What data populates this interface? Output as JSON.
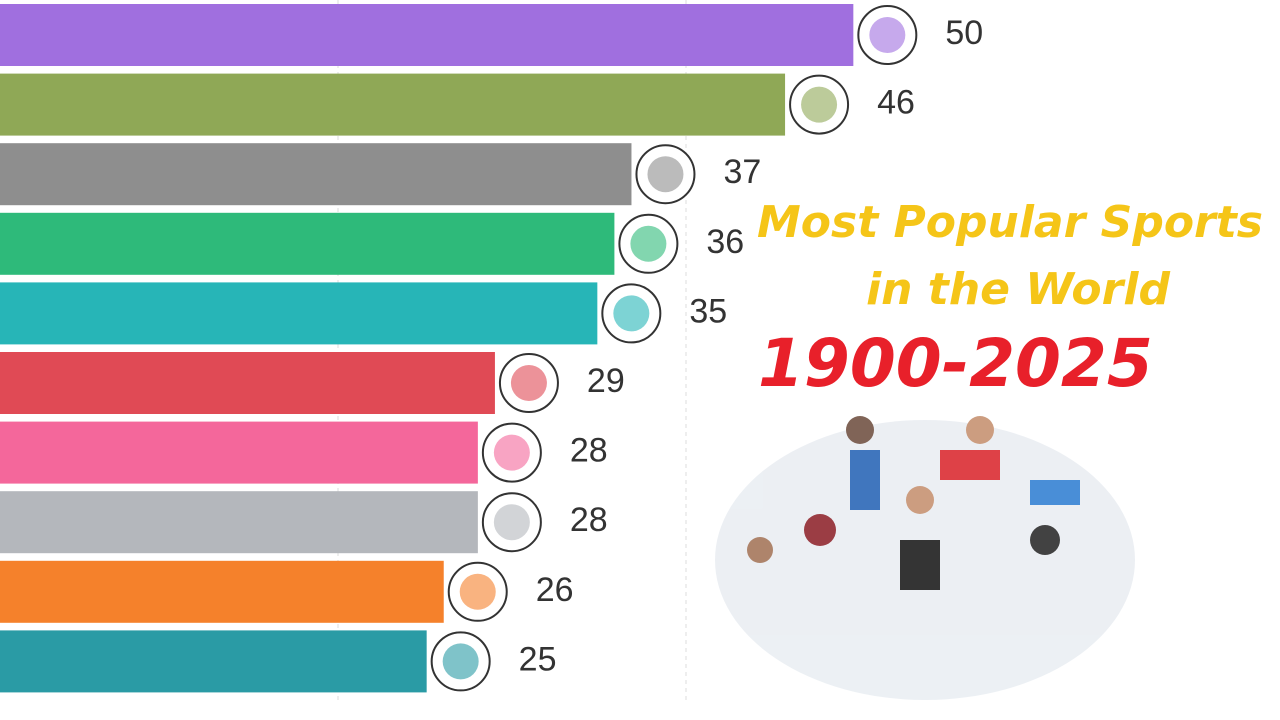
{
  "chart_data": {
    "type": "bar",
    "orientation": "horizontal",
    "title": [
      "Most Popular Sports",
      "in the World"
    ],
    "subtitle": "1900-2025",
    "categories": [
      null,
      null,
      null,
      null,
      null,
      null,
      null,
      null,
      null,
      null
    ],
    "values": [
      50,
      46,
      37,
      36,
      35,
      29,
      28,
      28,
      26,
      25
    ],
    "colors": [
      "#a06fdf",
      "#8fa856",
      "#8e8e8e",
      "#2eba7a",
      "#27b5b7",
      "#e04a55",
      "#f4679b",
      "#b4b7bc",
      "#f5812b",
      "#2a9ba5"
    ],
    "xlim": [
      0,
      75
    ]
  }
}
